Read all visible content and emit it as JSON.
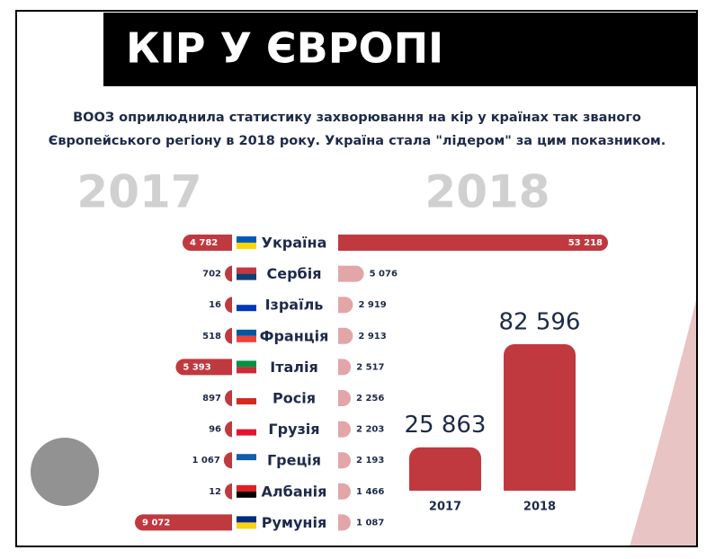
{
  "chart_data": [
    {
      "type": "butterfly",
      "title": "КІР У ЄВРОПІ",
      "subtitle": [
        "ВООЗ оприлюднила статистику захворювання на кір у країнах так званого",
        "Європейського регіону в 2018 року. Україна стала \"лідером\" за цим показником."
      ],
      "categories": [
        "Україна",
        "Сербія",
        "Ізраїль",
        "Франція",
        "Італія",
        "Росія",
        "Грузія",
        "Греція",
        "Албанія",
        "Румунія"
      ],
      "series": [
        {
          "name": "2017",
          "color": "#c0393f",
          "values": [
            4782,
            702,
            16,
            518,
            5393,
            897,
            96,
            1067,
            12,
            9072
          ],
          "value_labels": [
            "4 782",
            "702",
            "16",
            "518",
            "5 393",
            "897",
            "96",
            "1 067",
            "12",
            "9 072"
          ]
        },
        {
          "name": "2018",
          "color": "#c0393f",
          "values": [
            53218,
            5076,
            2919,
            2913,
            2517,
            2256,
            2203,
            2193,
            1466,
            1087
          ],
          "value_labels": [
            "53 218",
            "5 076",
            "2 919",
            "2 913",
            "2 517",
            "2 256",
            "2 203",
            "2 193",
            "1 466",
            "1 087"
          ]
        }
      ]
    },
    {
      "type": "bar",
      "categories": [
        "2017",
        "2018"
      ],
      "values": [
        25863,
        82596
      ],
      "value_labels": [
        "25 863",
        "82 596"
      ],
      "color": "#c0393f"
    }
  ]
}
